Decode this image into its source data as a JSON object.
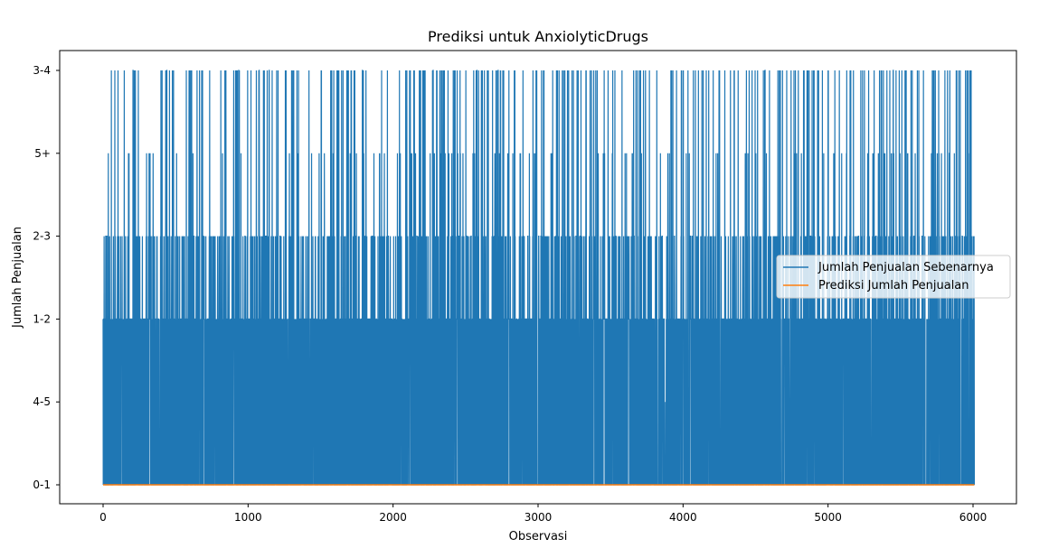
{
  "chart_data": {
    "type": "line",
    "title": "Prediksi untuk AnxiolyticDrugs",
    "xlabel": "Observasi",
    "ylabel": "Jumlah Penjualan",
    "xlim": [
      -300,
      6300
    ],
    "x_ticks": [
      0,
      1000,
      2000,
      3000,
      4000,
      5000,
      6000
    ],
    "y_categories": [
      "0-1",
      "4-5",
      "1-2",
      "2-3",
      "5+",
      "3-4"
    ],
    "n_observations": 6010,
    "legend": {
      "placement": "center-right"
    },
    "grid": false,
    "series": [
      {
        "name": "Jumlah Penjualan Sebenarnya",
        "color": "#1f77b4",
        "values_note": "",
        "values": []
      },
      {
        "name": "Prediksi Jumlah Penjualan",
        "color": "#ff7f0e",
        "values": []
      }
    ]
  }
}
